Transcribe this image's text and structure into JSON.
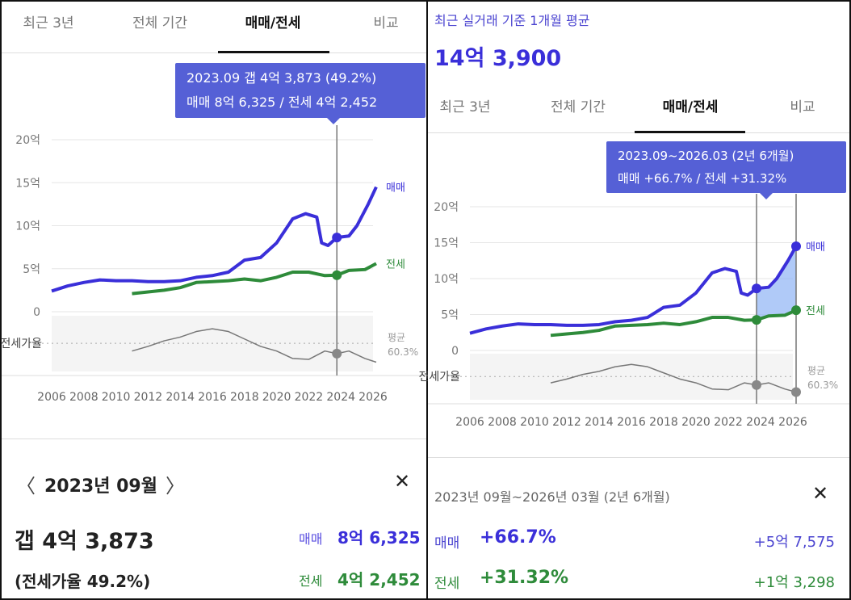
{
  "colors": {
    "sale": "#3a2fd9",
    "jeonse": "#2e8b3a",
    "ratio": "#777777",
    "accent": "#5560d6"
  },
  "tabs": [
    "최근 3년",
    "전체 기간",
    "매매/전세",
    "비교"
  ],
  "axis": {
    "y_labels": [
      "20억",
      "15억",
      "10억",
      "5억",
      "0"
    ],
    "x_labels": [
      "2006",
      "2008",
      "2010",
      "2012",
      "2014",
      "2016",
      "2018",
      "2020",
      "2022",
      "2024",
      "2026"
    ],
    "ratio_label": "전세가율",
    "avg_label": "평균",
    "avg_value": "60.3%",
    "sale_label": "매매",
    "jeonse_label": "전세"
  },
  "left": {
    "tooltip": {
      "line1": "2023.09  갭 4억 3,873 (49.2%)",
      "line2": "매매 8억 6,325 / 전세 4억 2,452"
    },
    "detail": {
      "prev": "〈",
      "month": "2023년 09월",
      "next": "〉",
      "close": "✕",
      "gap": "갭 4억 3,873",
      "ratio": "(전세가율 49.2%)",
      "sale_label": "매매",
      "sale_value": "8억 6,325",
      "jeonse_label": "전세",
      "jeonse_value": "4억 2,452"
    }
  },
  "right": {
    "header_label": "최근 실거래 기준 1개월 평균",
    "header_price": "14억 3,900",
    "tooltip": {
      "line1": "2023.09~2026.03 (2년 6개월)",
      "line2": "매매 +66.7%  /  전세 +31.32%"
    },
    "detail": {
      "period": "2023년 09월~2026년 03월 (2년 6개월)",
      "close": "✕",
      "sale_label": "매매",
      "sale_pct": "+66.7%",
      "sale_amount": "+5억 7,575",
      "jeonse_label": "전세",
      "jeonse_pct": "+31.32%",
      "jeonse_amount": "+1억 3,298"
    }
  },
  "chart_data": {
    "type": "line",
    "ylabel": "억",
    "ylim": [
      0,
      20
    ],
    "xlim": [
      2006,
      2026
    ],
    "ratio_ylim": [
      30,
      90
    ],
    "ratio_avg": 60.3,
    "series": [
      {
        "name": "매매",
        "x": [
          2006,
          2007,
          2008,
          2009,
          2010,
          2011,
          2012,
          2013,
          2014,
          2015,
          2016,
          2017,
          2018,
          2019,
          2020,
          2021,
          2021.8,
          2022.5,
          2022.8,
          2023.2,
          2023.75,
          2024.5,
          2025,
          2025.7,
          2026.2
        ],
        "values": [
          2.4,
          3.0,
          3.4,
          3.7,
          3.6,
          3.6,
          3.5,
          3.5,
          3.6,
          4.0,
          4.2,
          4.6,
          6.0,
          6.3,
          8.0,
          10.8,
          11.4,
          11.0,
          8.0,
          7.7,
          8.63,
          8.8,
          10.0,
          12.5,
          14.5
        ]
      },
      {
        "name": "전세",
        "x": [
          2011,
          2012,
          2013,
          2014,
          2015,
          2016,
          2017,
          2018,
          2019,
          2020,
          2021,
          2022,
          2023,
          2023.75,
          2024.5,
          2025.5,
          2026.2
        ],
        "values": [
          2.1,
          2.3,
          2.5,
          2.8,
          3.4,
          3.5,
          3.6,
          3.8,
          3.6,
          4.0,
          4.6,
          4.6,
          4.2,
          4.25,
          4.8,
          4.9,
          5.6
        ]
      },
      {
        "name": "전세가율",
        "x": [
          2011,
          2012,
          2013,
          2014,
          2015,
          2016,
          2017,
          2018,
          2019,
          2020,
          2021,
          2022,
          2023,
          2023.75,
          2024.5,
          2025.5,
          2026.2
        ],
        "values": [
          52,
          57,
          63,
          67,
          73,
          76,
          73,
          65,
          57,
          52,
          44,
          43,
          52,
          49.2,
          52,
          44,
          40
        ]
      }
    ],
    "left_marker": [
      2023.75
    ],
    "right_range": [
      2023.75,
      2026.2
    ]
  }
}
